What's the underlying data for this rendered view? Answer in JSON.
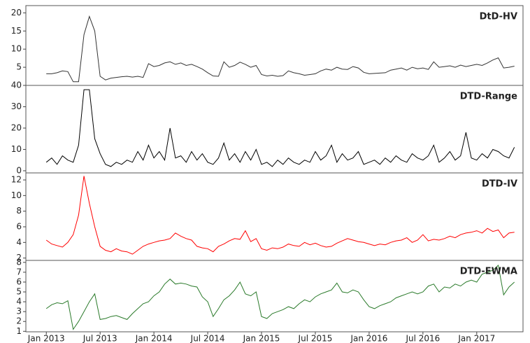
{
  "chart_data": [
    {
      "type": "line",
      "title": "DtD-HV",
      "color": "#333333",
      "x": [
        2013.0,
        2013.05,
        2013.1,
        2013.15,
        2013.2,
        2013.25,
        2013.3,
        2013.35,
        2013.4,
        2013.45,
        2013.5,
        2013.55,
        2013.6,
        2013.65,
        2013.7,
        2013.75,
        2013.8,
        2013.85,
        2013.9,
        2013.95,
        2014.0,
        2014.05,
        2014.1,
        2014.15,
        2014.2,
        2014.25,
        2014.3,
        2014.35,
        2014.4,
        2014.45,
        2014.5,
        2014.55,
        2014.6,
        2014.65,
        2014.7,
        2014.75,
        2014.8,
        2014.85,
        2014.9,
        2014.95,
        2015.0,
        2015.05,
        2015.1,
        2015.15,
        2015.2,
        2015.25,
        2015.3,
        2015.35,
        2015.4,
        2015.45,
        2015.5,
        2015.55,
        2015.6,
        2015.65,
        2015.7,
        2015.75,
        2015.8,
        2015.85,
        2015.9,
        2015.95,
        2016.0,
        2016.05,
        2016.1,
        2016.15,
        2016.2,
        2016.25,
        2016.3,
        2016.35,
        2016.4,
        2016.45,
        2016.5,
        2016.55,
        2016.6,
        2016.65,
        2016.7,
        2016.75,
        2016.8,
        2016.85,
        2016.9,
        2016.95,
        2017.0,
        2017.05,
        2017.1,
        2017.15,
        2017.2,
        2017.25,
        2017.3,
        2017.35
      ],
      "values": [
        3.2,
        3.2,
        3.5,
        4.0,
        3.8,
        1.0,
        1.0,
        14,
        19,
        15,
        2.5,
        1.5,
        2.0,
        2.2,
        2.4,
        2.5,
        2.3,
        2.5,
        2.2,
        6.0,
        5.2,
        5.5,
        6.2,
        6.5,
        5.8,
        6.2,
        5.5,
        5.8,
        5.2,
        4.5,
        3.5,
        2.6,
        2.5,
        6.5,
        5.0,
        5.5,
        6.4,
        5.8,
        5.0,
        5.5,
        3.0,
        2.6,
        2.8,
        2.5,
        2.7,
        4.0,
        3.5,
        3.2,
        2.8,
        3.0,
        3.2,
        4.0,
        4.5,
        4.2,
        5.0,
        4.5,
        4.4,
        5.2,
        4.8,
        3.6,
        3.2,
        3.3,
        3.4,
        3.5,
        4.2,
        4.5,
        4.8,
        4.2,
        5.0,
        4.6,
        4.8,
        4.4,
        6.5,
        5.0,
        5.2,
        5.4,
        5.0,
        5.6,
        5.2,
        5.5,
        5.8,
        5.5,
        6.2,
        7.0,
        7.6,
        4.8,
        5.0,
        5.3
      ],
      "xlim": [
        2012.81,
        2017.43
      ],
      "ylim": [
        0,
        22
      ],
      "yticks": [
        5,
        10,
        15,
        20
      ]
    },
    {
      "type": "line",
      "title": "DTD-Range",
      "color": "#000000",
      "x": [
        2013.0,
        2013.05,
        2013.1,
        2013.15,
        2013.2,
        2013.25,
        2013.3,
        2013.35,
        2013.4,
        2013.45,
        2013.5,
        2013.55,
        2013.6,
        2013.65,
        2013.7,
        2013.75,
        2013.8,
        2013.85,
        2013.9,
        2013.95,
        2014.0,
        2014.05,
        2014.1,
        2014.15,
        2014.2,
        2014.25,
        2014.3,
        2014.35,
        2014.4,
        2014.45,
        2014.5,
        2014.55,
        2014.6,
        2014.65,
        2014.7,
        2014.75,
        2014.8,
        2014.85,
        2014.9,
        2014.95,
        2015.0,
        2015.05,
        2015.1,
        2015.15,
        2015.2,
        2015.25,
        2015.3,
        2015.35,
        2015.4,
        2015.45,
        2015.5,
        2015.55,
        2015.6,
        2015.65,
        2015.7,
        2015.75,
        2015.8,
        2015.85,
        2015.9,
        2015.95,
        2016.0,
        2016.05,
        2016.1,
        2016.15,
        2016.2,
        2016.25,
        2016.3,
        2016.35,
        2016.4,
        2016.45,
        2016.5,
        2016.55,
        2016.6,
        2016.65,
        2016.7,
        2016.75,
        2016.8,
        2016.85,
        2016.9,
        2016.95,
        2017.0,
        2017.05,
        2017.1,
        2017.15,
        2017.2,
        2017.25,
        2017.3,
        2017.35
      ],
      "values": [
        4,
        6,
        3,
        7,
        5,
        4,
        12,
        38,
        38,
        15,
        8,
        3,
        2,
        4,
        3,
        5,
        4,
        9,
        5,
        12,
        6,
        9,
        5,
        20,
        6,
        7,
        4,
        9,
        5,
        8,
        4,
        3,
        6,
        13,
        5,
        8,
        4,
        9,
        5,
        10,
        3,
        4,
        2,
        5,
        3,
        6,
        4,
        3,
        5,
        4,
        9,
        5,
        7,
        12,
        4,
        8,
        5,
        6,
        9,
        3,
        4,
        5,
        3,
        6,
        4,
        7,
        5,
        4,
        8,
        6,
        5,
        7,
        12,
        4,
        6,
        9,
        5,
        7,
        18,
        6,
        5,
        8,
        6,
        10,
        9,
        7,
        6,
        11
      ],
      "xlim": [
        2012.81,
        2017.43
      ],
      "ylim": [
        -1,
        40
      ],
      "yticks": [
        0,
        10,
        20,
        30,
        40
      ]
    },
    {
      "type": "line",
      "title": "DTD-IV",
      "color": "#ff0000",
      "x": [
        2013.0,
        2013.05,
        2013.1,
        2013.15,
        2013.2,
        2013.25,
        2013.3,
        2013.35,
        2013.4,
        2013.45,
        2013.5,
        2013.55,
        2013.6,
        2013.65,
        2013.7,
        2013.75,
        2013.8,
        2013.85,
        2013.9,
        2013.95,
        2014.0,
        2014.05,
        2014.1,
        2014.15,
        2014.2,
        2014.25,
        2014.3,
        2014.35,
        2014.4,
        2014.45,
        2014.5,
        2014.55,
        2014.6,
        2014.65,
        2014.7,
        2014.75,
        2014.8,
        2014.85,
        2014.9,
        2014.95,
        2015.0,
        2015.05,
        2015.1,
        2015.15,
        2015.2,
        2015.25,
        2015.3,
        2015.35,
        2015.4,
        2015.45,
        2015.5,
        2015.55,
        2015.6,
        2015.65,
        2015.7,
        2015.75,
        2015.8,
        2015.85,
        2015.9,
        2015.95,
        2016.0,
        2016.05,
        2016.1,
        2016.15,
        2016.2,
        2016.25,
        2016.3,
        2016.35,
        2016.4,
        2016.45,
        2016.5,
        2016.55,
        2016.6,
        2016.65,
        2016.7,
        2016.75,
        2016.8,
        2016.85,
        2016.9,
        2016.95,
        2017.0,
        2017.05,
        2017.1,
        2017.15,
        2017.2,
        2017.25,
        2017.3,
        2017.35
      ],
      "values": [
        4.3,
        3.8,
        3.6,
        3.4,
        4.0,
        5.0,
        7.5,
        12.5,
        9.0,
        6.0,
        3.5,
        3.0,
        2.8,
        3.2,
        2.9,
        2.8,
        2.5,
        3.0,
        3.5,
        3.8,
        4.0,
        4.2,
        4.3,
        4.5,
        5.2,
        4.8,
        4.5,
        4.3,
        3.5,
        3.3,
        3.2,
        2.8,
        3.5,
        3.8,
        4.2,
        4.5,
        4.4,
        5.5,
        4.1,
        4.5,
        3.2,
        3.0,
        3.3,
        3.2,
        3.4,
        3.8,
        3.6,
        3.5,
        4.0,
        3.7,
        3.9,
        3.6,
        3.4,
        3.5,
        3.9,
        4.2,
        4.5,
        4.3,
        4.1,
        4.0,
        3.8,
        3.6,
        3.8,
        3.7,
        4.0,
        4.2,
        4.3,
        4.6,
        4.0,
        4.3,
        5.0,
        4.2,
        4.4,
        4.3,
        4.5,
        4.8,
        4.6,
        5.0,
        5.2,
        5.3,
        5.5,
        5.2,
        5.8,
        5.4,
        5.6,
        4.6,
        5.2,
        5.3
      ],
      "xlim": [
        2012.81,
        2017.43
      ],
      "ylim": [
        1.7,
        12.9
      ],
      "yticks": [
        2,
        4,
        6,
        8,
        10,
        12
      ]
    },
    {
      "type": "line",
      "title": "DTD-EWMA",
      "color": "#2a7a2a",
      "x": [
        2013.0,
        2013.05,
        2013.1,
        2013.15,
        2013.2,
        2013.25,
        2013.3,
        2013.35,
        2013.4,
        2013.45,
        2013.5,
        2013.55,
        2013.6,
        2013.65,
        2013.7,
        2013.75,
        2013.8,
        2013.85,
        2013.9,
        2013.95,
        2014.0,
        2014.05,
        2014.1,
        2014.15,
        2014.2,
        2014.25,
        2014.3,
        2014.35,
        2014.4,
        2014.45,
        2014.5,
        2014.55,
        2014.6,
        2014.65,
        2014.7,
        2014.75,
        2014.8,
        2014.85,
        2014.9,
        2014.95,
        2015.0,
        2015.05,
        2015.1,
        2015.15,
        2015.2,
        2015.25,
        2015.3,
        2015.35,
        2015.4,
        2015.45,
        2015.5,
        2015.55,
        2015.6,
        2015.65,
        2015.7,
        2015.75,
        2015.8,
        2015.85,
        2015.9,
        2015.95,
        2016.0,
        2016.05,
        2016.1,
        2016.15,
        2016.2,
        2016.25,
        2016.3,
        2016.35,
        2016.4,
        2016.45,
        2016.5,
        2016.55,
        2016.6,
        2016.65,
        2016.7,
        2016.75,
        2016.8,
        2016.85,
        2016.9,
        2016.95,
        2017.0,
        2017.05,
        2017.1,
        2017.15,
        2017.2,
        2017.25,
        2017.3,
        2017.35
      ],
      "values": [
        3.3,
        3.7,
        3.9,
        3.8,
        4.1,
        1.2,
        2.0,
        3.0,
        4.0,
        4.8,
        2.2,
        2.3,
        2.5,
        2.6,
        2.4,
        2.2,
        2.8,
        3.3,
        3.8,
        4.0,
        4.6,
        5.0,
        5.8,
        6.3,
        5.8,
        5.9,
        5.8,
        5.6,
        5.5,
        4.5,
        4.0,
        2.5,
        3.3,
        4.2,
        4.6,
        5.2,
        6.0,
        4.8,
        4.6,
        5.0,
        2.5,
        2.3,
        2.8,
        3.0,
        3.2,
        3.5,
        3.3,
        3.8,
        4.2,
        4.0,
        4.5,
        4.8,
        5.0,
        5.2,
        5.9,
        5.0,
        4.9,
        5.2,
        5.0,
        4.2,
        3.5,
        3.3,
        3.6,
        3.8,
        4.0,
        4.4,
        4.6,
        4.8,
        5.0,
        4.8,
        5.0,
        5.6,
        5.8,
        5.0,
        5.5,
        5.4,
        5.8,
        5.6,
        6.0,
        6.2,
        6.0,
        6.8,
        7.0,
        7.2,
        7.7,
        4.7,
        5.5,
        6.0
      ],
      "xlim": [
        2012.81,
        2017.43
      ],
      "ylim": [
        0.95,
        8.2
      ],
      "yticks": [
        1,
        2,
        3,
        4,
        5,
        6,
        7,
        8
      ],
      "xticks": [
        {
          "value": 2013.0,
          "label": "Jan 2013"
        },
        {
          "value": 2013.5,
          "label": "Jul 2013"
        },
        {
          "value": 2014.0,
          "label": "Jan 2014"
        },
        {
          "value": 2014.5,
          "label": "Jul 2014"
        },
        {
          "value": 2015.0,
          "label": "Jan 2015"
        },
        {
          "value": 2015.5,
          "label": "Jul 2015"
        },
        {
          "value": 2016.0,
          "label": "Jan 2016"
        },
        {
          "value": 2016.5,
          "label": "Jul 2016"
        },
        {
          "value": 2017.0,
          "label": "Jan 2017"
        }
      ]
    }
  ]
}
